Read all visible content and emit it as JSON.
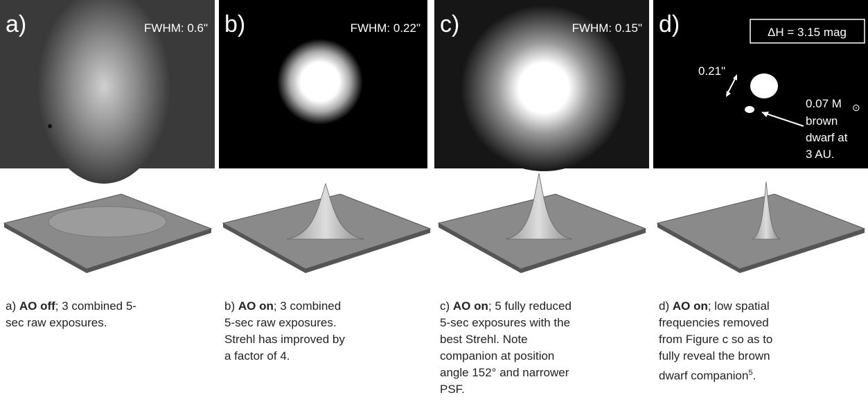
{
  "panels": [
    {
      "label": "a)",
      "fwhm": "FWHM: 0.6\"",
      "caption": {
        "lead": "a)",
        "bold": "AO off",
        "lines": [
          "; 3 combined 5-",
          "sec raw exposures."
        ]
      }
    },
    {
      "label": "b)",
      "fwhm": "FWHM: 0.22\"",
      "caption": {
        "lead": "b)",
        "bold": "AO on",
        "lines": [
          "; 3 combined",
          "5-sec raw exposures.",
          "Strehl has improved by",
          "a factor of 4."
        ]
      }
    },
    {
      "label": "c)",
      "fwhm": "FWHM: 0.15\"",
      "caption": {
        "lead": "c)",
        "bold": "AO on",
        "lines": [
          "; 5 fully reduced",
          "5-sec exposures with the",
          "best Strehl. Note",
          "companion at position",
          "angle 152° and narrower",
          "PSF."
        ]
      }
    },
    {
      "label": "d)",
      "caption": {
        "lead": "d)",
        "bold": "AO on",
        "lines": [
          "; low spatial",
          "frequencies removed",
          "from Figure c so as to",
          "fully reveal the brown",
          "dwarf companion"
        ],
        "sup": "5",
        "tail": "."
      }
    }
  ],
  "annotations": {
    "delta": "ΔH = 3.15 mag",
    "separation": "0.21\"",
    "mass": "0.07 M",
    "sun": "⊙",
    "companion_lines": [
      "brown",
      "dwarf at",
      "3 AU."
    ]
  }
}
